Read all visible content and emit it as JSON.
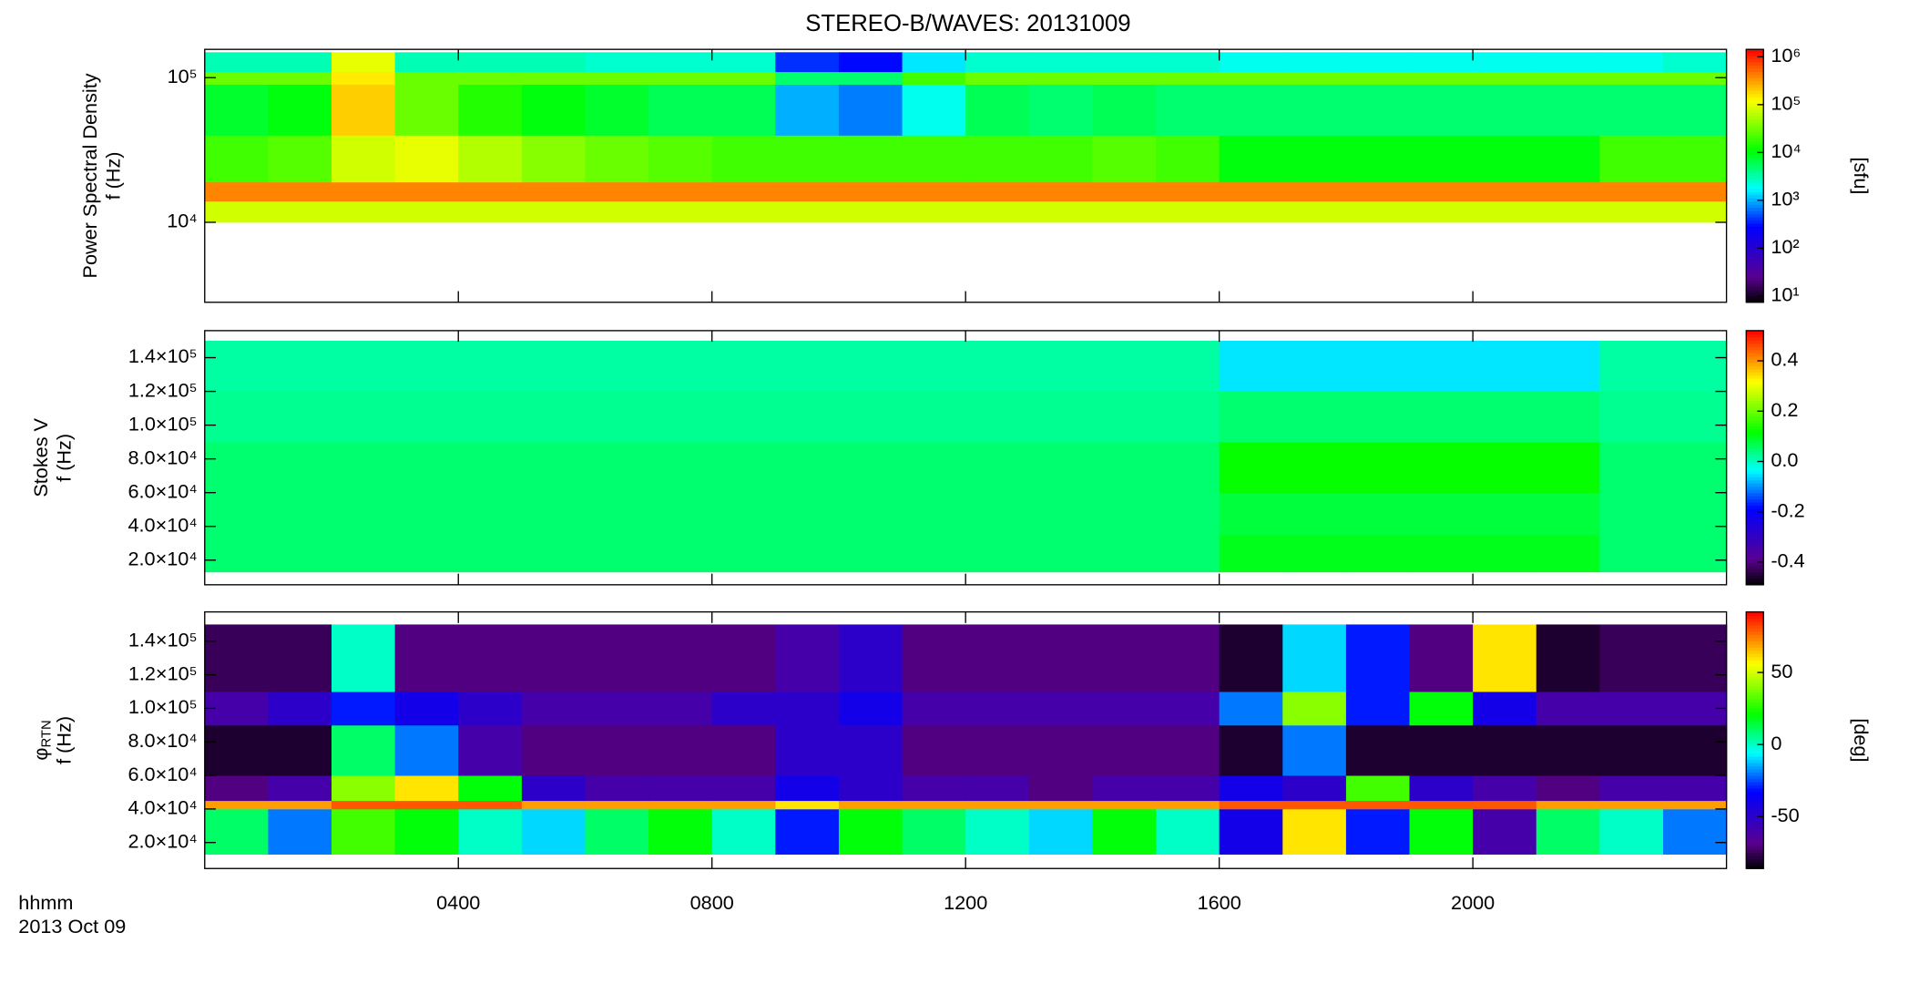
{
  "title": "STEREO-B/WAVES: 20131009",
  "time": {
    "label": "hhmm",
    "date": "2013 Oct 09",
    "xlim": [
      0,
      24
    ],
    "xticks": [
      {
        "value": 4,
        "label": "0400"
      },
      {
        "value": 8,
        "label": "0800"
      },
      {
        "value": 12,
        "label": "1200"
      },
      {
        "value": 16,
        "label": "1600"
      },
      {
        "value": 20,
        "label": "2000"
      }
    ],
    "bins": [
      0,
      1,
      2,
      3,
      4,
      5,
      6,
      7,
      8,
      9,
      10,
      11,
      12,
      13,
      14,
      15,
      16,
      17,
      18,
      19,
      20,
      21,
      22,
      23,
      24
    ]
  },
  "chart_data": [
    {
      "type": "heatmap",
      "ylabel": [
        "Power Spectral Density",
        "f (Hz)"
      ],
      "ylog": true,
      "zlog": true,
      "ylim": [
        2800,
        157000
      ],
      "yticks": [
        {
          "value": 10000,
          "label": "10⁴"
        },
        {
          "value": 100000,
          "label": "10⁵"
        }
      ],
      "ybins": [
        10000,
        14000,
        19000,
        40000,
        90000,
        110000,
        150000
      ],
      "zlim": [
        7.4,
        1430000
      ],
      "zlabel": "[sfu]",
      "zticks": [
        {
          "value": 10,
          "label": "10¹"
        },
        {
          "value": 100,
          "label": "10²"
        },
        {
          "value": 1000,
          "label": "10³"
        },
        {
          "value": 10000,
          "label": "10⁴"
        },
        {
          "value": 100000,
          "label": "10⁵"
        },
        {
          "value": 1000000,
          "label": "10⁶"
        }
      ],
      "values": [
        [
          80000,
          80000,
          80000,
          80000,
          80000,
          80000,
          80000,
          80000,
          80000,
          80000,
          80000,
          80000,
          80000,
          80000,
          80000,
          80000,
          80000,
          80000,
          80000,
          80000,
          80000,
          80000,
          80000,
          80000
        ],
        [
          400000,
          400000,
          400000,
          400000,
          400000,
          400000,
          400000,
          400000,
          400000,
          400000,
          400000,
          400000,
          400000,
          400000,
          400000,
          400000,
          400000,
          400000,
          400000,
          400000,
          400000,
          400000,
          400000,
          400000
        ],
        [
          20000,
          25000,
          80000,
          100000,
          60000,
          40000,
          30000,
          25000,
          20000,
          20000,
          20000,
          20000,
          20000,
          20000,
          25000,
          20000,
          10000,
          10000,
          10000,
          10000,
          10000,
          10000,
          20000,
          20000
        ],
        [
          8000,
          10000,
          200000,
          30000,
          15000,
          10000,
          8000,
          6000,
          6000,
          1000,
          700,
          2000,
          6000,
          5000,
          6000,
          5000,
          5000,
          5000,
          5000,
          5000,
          5000,
          5000,
          5000,
          5000
        ],
        [
          30000,
          30000,
          150000,
          30000,
          30000,
          30000,
          30000,
          30000,
          30000,
          5000,
          5000,
          20000,
          30000,
          30000,
          30000,
          30000,
          30000,
          30000,
          30000,
          30000,
          30000,
          30000,
          30000,
          30000
        ],
        [
          3000,
          3000,
          100000,
          3000,
          3000,
          3000,
          2500,
          2500,
          2500,
          400,
          300,
          1500,
          2500,
          2500,
          2500,
          2500,
          2000,
          2000,
          2000,
          2000,
          2000,
          2000,
          2000,
          2500
        ]
      ]
    },
    {
      "type": "heatmap",
      "ylabel": [
        "Stokes V",
        "f (Hz)"
      ],
      "ylog": false,
      "zlog": false,
      "ylim": [
        5400,
        156000
      ],
      "yticks": [
        {
          "value": 20000,
          "label": "2.0×10⁴"
        },
        {
          "value": 40000,
          "label": "4.0×10⁴"
        },
        {
          "value": 60000,
          "label": "6.0×10⁴"
        },
        {
          "value": 80000,
          "label": "8.0×10⁴"
        },
        {
          "value": 100000,
          "label": "1.0×10⁵"
        },
        {
          "value": 120000,
          "label": "1.2×10⁵"
        },
        {
          "value": 140000,
          "label": "1.4×10⁵"
        }
      ],
      "ybins": [
        13000,
        35000,
        60000,
        90000,
        120000,
        150000
      ],
      "zlim": [
        -0.49,
        0.52
      ],
      "zticks": [
        -0.4,
        -0.2,
        {
          "value": 0,
          "label": "0.0"
        },
        0.2,
        0.4
      ],
      "values": [
        [
          0.05,
          0.05,
          0.05,
          0.05,
          0.05,
          0.05,
          0.05,
          0.05,
          0.05,
          0.05,
          0.05,
          0.05,
          0.05,
          0.05,
          0.05,
          0.05,
          0.1,
          0.1,
          0.1,
          0.1,
          0.1,
          0.1,
          0.05,
          0.05
        ],
        [
          0.05,
          0.05,
          0.05,
          0.05,
          0.05,
          0.05,
          0.05,
          0.05,
          0.05,
          0.05,
          0.05,
          0.05,
          0.05,
          0.05,
          0.05,
          0.05,
          0.08,
          0.08,
          0.08,
          0.08,
          0.08,
          0.08,
          0.05,
          0.05
        ],
        [
          0.05,
          0.05,
          0.05,
          0.05,
          0.05,
          0.05,
          0.05,
          0.05,
          0.05,
          0.05,
          0.05,
          0.05,
          0.05,
          0.05,
          0.05,
          0.05,
          0.12,
          0.12,
          0.12,
          0.12,
          0.12,
          0.12,
          0.05,
          0.05
        ],
        [
          0.03,
          0.03,
          0.03,
          0.03,
          0.03,
          0.03,
          0.03,
          0.03,
          0.03,
          0.03,
          0.03,
          0.03,
          0.03,
          0.03,
          0.03,
          0.03,
          0.05,
          0.05,
          0.05,
          0.05,
          0.05,
          0.05,
          0.03,
          0.03
        ],
        [
          0.02,
          0.02,
          0.02,
          0.02,
          0.02,
          0.02,
          0.02,
          0.02,
          0.02,
          0.02,
          0.02,
          0.02,
          0.02,
          0.02,
          0.02,
          0.02,
          -0.05,
          -0.05,
          -0.05,
          -0.05,
          -0.05,
          -0.05,
          0.02,
          0.02
        ]
      ]
    },
    {
      "type": "heatmap",
      "ylabel": [
        "φ",
        "f (Hz)"
      ],
      "ylabel_sub": "RTN",
      "ylog": false,
      "zlog": false,
      "ylim": [
        4500,
        157500
      ],
      "yticks": [
        {
          "value": 20000,
          "label": "2.0×10⁴"
        },
        {
          "value": 40000,
          "label": "4.0×10⁴"
        },
        {
          "value": 60000,
          "label": "6.0×10⁴"
        },
        {
          "value": 80000,
          "label": "8.0×10⁴"
        },
        {
          "value": 100000,
          "label": "1.0×10⁵"
        },
        {
          "value": 120000,
          "label": "1.2×10⁵"
        },
        {
          "value": 140000,
          "label": "1.4×10⁵"
        }
      ],
      "ybins": [
        13000,
        40000,
        45000,
        60000,
        90000,
        110000,
        150000
      ],
      "zlim": [
        -86,
        92
      ],
      "zlabel": "[deg]",
      "zticks": [
        -50,
        0,
        50
      ],
      "values": [
        [
          10,
          -20,
          30,
          20,
          0,
          -10,
          10,
          20,
          0,
          -30,
          20,
          10,
          0,
          -10,
          20,
          0,
          -40,
          60,
          -30,
          20,
          -60,
          10,
          0,
          -20
        ],
        [
          70,
          70,
          80,
          80,
          80,
          70,
          70,
          70,
          70,
          60,
          70,
          70,
          70,
          70,
          70,
          70,
          80,
          80,
          80,
          80,
          80,
          70,
          70,
          70
        ],
        [
          -70,
          -60,
          40,
          60,
          20,
          -50,
          -60,
          -60,
          -60,
          -40,
          -50,
          -60,
          -60,
          -70,
          -60,
          -60,
          -40,
          -50,
          30,
          -50,
          -60,
          -70,
          -60,
          -60
        ],
        [
          -80,
          -80,
          10,
          -20,
          -60,
          -70,
          -70,
          -70,
          -70,
          -50,
          -50,
          -70,
          -70,
          -70,
          -70,
          -70,
          -80,
          -20,
          -80,
          -80,
          -80,
          -80,
          -80,
          -80
        ],
        [
          -60,
          -50,
          -30,
          -40,
          -50,
          -60,
          -60,
          -60,
          -50,
          -50,
          -40,
          -60,
          -60,
          -60,
          -60,
          -60,
          -20,
          40,
          -30,
          20,
          -40,
          -60,
          -60,
          -60
        ],
        [
          -75,
          -75,
          0,
          -70,
          -70,
          -70,
          -70,
          -70,
          -70,
          -60,
          -50,
          -70,
          -70,
          -70,
          -70,
          -70,
          -80,
          -10,
          -30,
          -70,
          60,
          -80,
          -75,
          -75
        ]
      ]
    }
  ]
}
